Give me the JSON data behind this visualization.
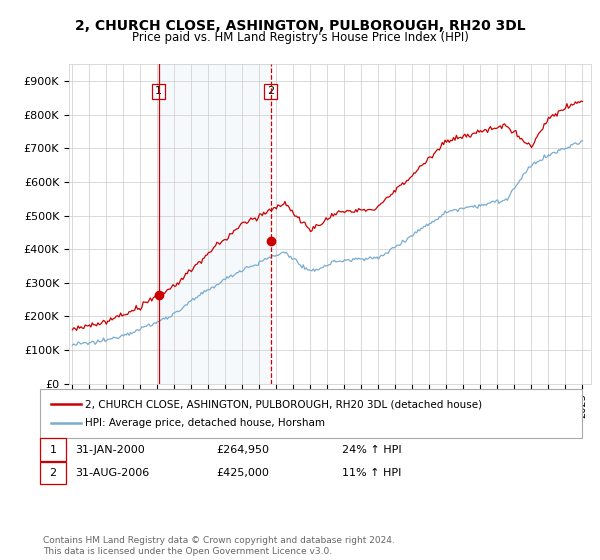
{
  "title": "2, CHURCH CLOSE, ASHINGTON, PULBOROUGH, RH20 3DL",
  "subtitle": "Price paid vs. HM Land Registry's House Price Index (HPI)",
  "legend_line1": "2, CHURCH CLOSE, ASHINGTON, PULBOROUGH, RH20 3DL (detached house)",
  "legend_line2": "HPI: Average price, detached house, Horsham",
  "footnote": "Contains HM Land Registry data © Crown copyright and database right 2024.\nThis data is licensed under the Open Government Licence v3.0.",
  "annotation1_date": "31-JAN-2000",
  "annotation1_price": "£264,950",
  "annotation1_hpi": "24% ↑ HPI",
  "annotation2_date": "31-AUG-2006",
  "annotation2_price": "£425,000",
  "annotation2_hpi": "11% ↑ HPI",
  "line_color_red": "#cc0000",
  "line_color_blue": "#7aadcf",
  "fill_color_blue": "#cce0ef",
  "vline1_color": "#cc0000",
  "vline2_color": "#cc0000",
  "background_color": "#ffffff",
  "grid_color": "#cccccc",
  "ylim": [
    0,
    950000
  ],
  "yticks": [
    0,
    100000,
    200000,
    300000,
    400000,
    500000,
    600000,
    700000,
    800000,
    900000
  ],
  "ytick_labels": [
    "£0",
    "£100K",
    "£200K",
    "£300K",
    "£400K",
    "£500K",
    "£600K",
    "£700K",
    "£800K",
    "£900K"
  ],
  "sale1_x": 2000.08,
  "sale1_y": 264950,
  "sale2_x": 2006.67,
  "sale2_y": 425000,
  "xlim_left": 1994.8,
  "xlim_right": 2025.5
}
